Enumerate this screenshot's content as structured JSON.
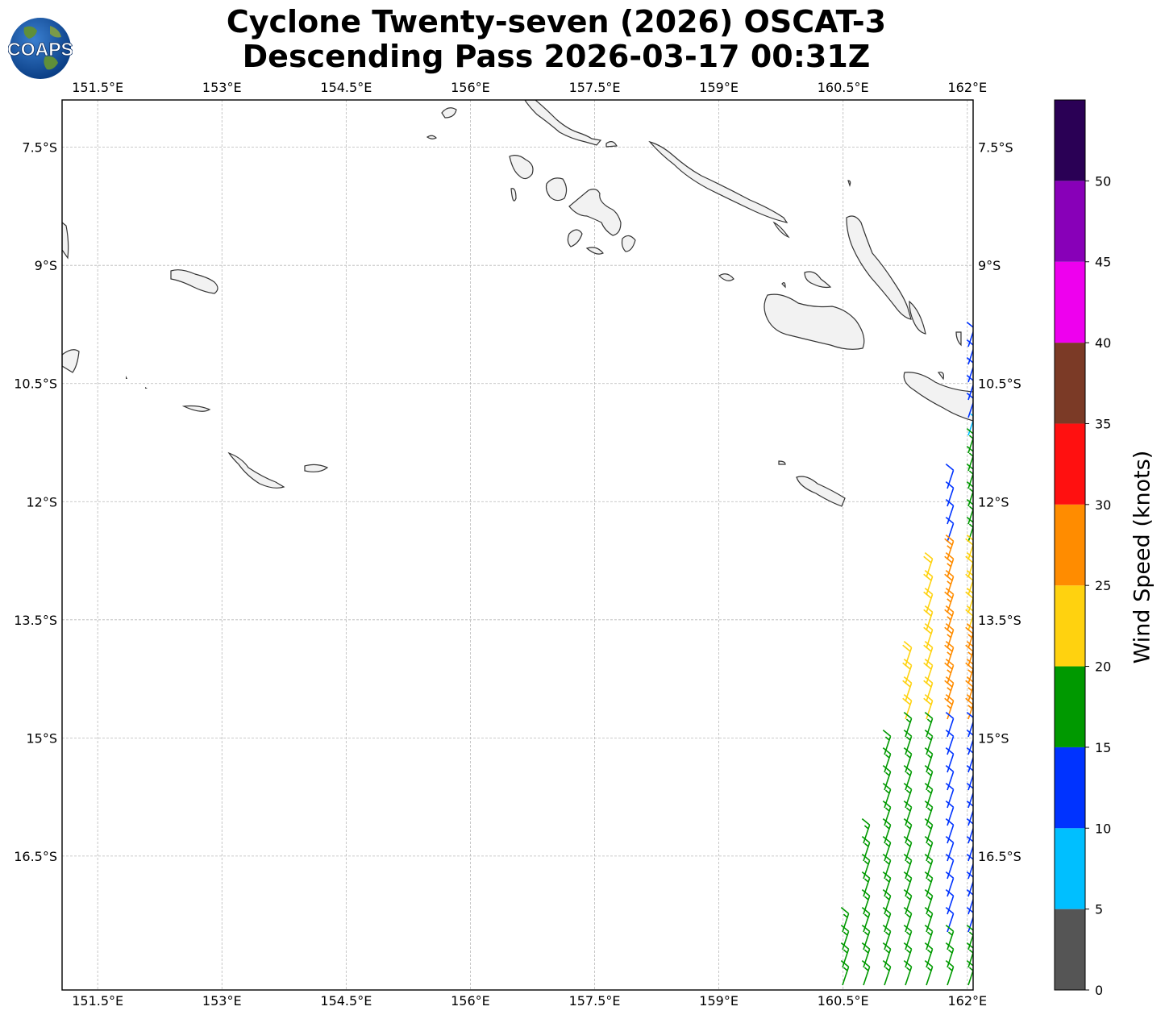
{
  "title": {
    "line1": "Cyclone Twenty-seven (2026) OSCAT-3",
    "line2": "Descending Pass 2026-03-17 00:31Z"
  },
  "logo": {
    "text": "COAPS",
    "icon": "globe-logo-icon"
  },
  "map": {
    "projection": "PlateCarree",
    "lon_range": [
      151.07,
      162.07
    ],
    "lat_range": [
      -18.2,
      -6.9
    ],
    "lon_ticks": [
      "151.5°E",
      "153°E",
      "154.5°E",
      "156°E",
      "157.5°E",
      "159°E",
      "160.5°E",
      "162°E"
    ],
    "lat_ticks": [
      "7.5°S",
      "9°S",
      "10.5°S",
      "12°S",
      "13.5°S",
      "15°S",
      "16.5°S"
    ],
    "gridlines": true,
    "land_fill": "#f2f2f2",
    "coast_color": "#333333"
  },
  "colorbar": {
    "label": "Wind Speed (knots)",
    "ticks": [
      "0",
      "5",
      "10",
      "15",
      "20",
      "25",
      "30",
      "35",
      "40",
      "45",
      "50"
    ],
    "bins": [
      {
        "range": [
          0,
          5
        ],
        "color": "#555555"
      },
      {
        "range": [
          5,
          10
        ],
        "color": "#00bfff"
      },
      {
        "range": [
          10,
          15
        ],
        "color": "#0033ff"
      },
      {
        "range": [
          15,
          20
        ],
        "color": "#009900"
      },
      {
        "range": [
          20,
          25
        ],
        "color": "#ffd20f"
      },
      {
        "range": [
          25,
          30
        ],
        "color": "#ff8c00"
      },
      {
        "range": [
          30,
          35
        ],
        "color": "#ff1010"
      },
      {
        "range": [
          35,
          40
        ],
        "color": "#7b3a26"
      },
      {
        "range": [
          40,
          45
        ],
        "color": "#ee00ee"
      },
      {
        "range": [
          45,
          50
        ],
        "color": "#8800b8"
      },
      {
        "range": [
          50,
          55
        ],
        "color": "#2a0055"
      }
    ]
  }
}
